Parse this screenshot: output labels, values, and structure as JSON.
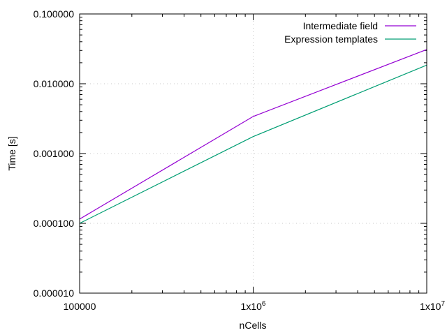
{
  "chart_data": {
    "type": "line",
    "xlabel": "nCells",
    "ylabel": "Time [s]",
    "x_scale": "log",
    "y_scale": "log",
    "xlim": [
      100000,
      10000000
    ],
    "ylim": [
      1e-05,
      0.1
    ],
    "grid": true,
    "legend_position": "top-right",
    "x_ticks": [
      {
        "value": 100000,
        "mantissa": "100000",
        "exponent": ""
      },
      {
        "value": 1000000,
        "mantissa": "1x10",
        "exponent": "6"
      },
      {
        "value": 10000000,
        "mantissa": "1x10",
        "exponent": "7"
      }
    ],
    "y_ticks": [
      {
        "value": 1e-05,
        "label": "0.000010"
      },
      {
        "value": 0.0001,
        "label": "0.000100"
      },
      {
        "value": 0.001,
        "label": "0.001000"
      },
      {
        "value": 0.01,
        "label": "0.010000"
      },
      {
        "value": 0.1,
        "label": "0.100000"
      }
    ],
    "x": [
      100000,
      1000000,
      10000000
    ],
    "series": [
      {
        "name": "Intermediate field",
        "color": "#9400d3",
        "values": [
          0.000115,
          0.0034,
          0.031
        ]
      },
      {
        "name": "Expression templates",
        "color": "#009e73",
        "values": [
          0.0001,
          0.00175,
          0.0185
        ]
      }
    ]
  }
}
